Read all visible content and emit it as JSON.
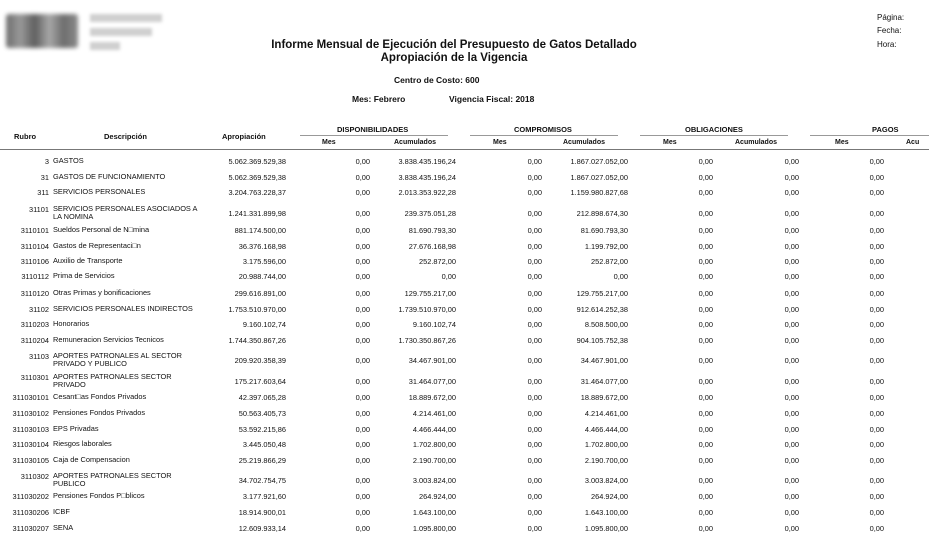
{
  "header": {
    "title": "Informe Mensual de Ejecución del Presupuesto de Gatos Detallado",
    "subtitle": "Apropiación de la Vigencia",
    "centro_costo": "Centro de Costo: 600",
    "mes": "Mes:  Febrero",
    "vigencia": "Vigencia Fiscal: 2018",
    "pagina_label": "Página:",
    "fecha_label": "Fecha:",
    "hora_label": "Hora:"
  },
  "columns": {
    "rubro": "Rubro",
    "descripcion": "Descripción",
    "apropiacion": "Apropiación",
    "disponibilidades": "DISPONIBILIDADES",
    "compromisos": "COMPROMISOS",
    "obligaciones": "OBLIGACIONES",
    "pagos": "PAGOS",
    "mes": "Mes",
    "acumulados": "Acumulados",
    "acu_partial": "Acu"
  },
  "rows": [
    {
      "rubro": "3",
      "desc": "GASTOS",
      "apro": "5.062.369.529,38",
      "dm": "0,00",
      "da": "3.838.435.196,24",
      "cm": "0,00",
      "ca": "1.867.027.052,00",
      "om": "0,00",
      "oa": "0,00",
      "pm": "0,00"
    },
    {
      "rubro": "31",
      "desc": "GASTOS DE FUNCIONAMIENTO",
      "apro": "5.062.369.529,38",
      "dm": "0,00",
      "da": "3.838.435.196,24",
      "cm": "0,00",
      "ca": "1.867.027.052,00",
      "om": "0,00",
      "oa": "0,00",
      "pm": "0,00"
    },
    {
      "rubro": "311",
      "desc": "SERVICIOS PERSONALES",
      "apro": "3.204.763.228,37",
      "dm": "0,00",
      "da": "2.013.353.922,28",
      "cm": "0,00",
      "ca": "1.159.980.827,68",
      "om": "0,00",
      "oa": "0,00",
      "pm": "0,00"
    },
    {
      "rubro": "31101",
      "desc": "SERVICIOS PERSONALES ASOCIADOS A LA NOMINA",
      "apro": "1.241.331.899,98",
      "dm": "0,00",
      "da": "239.375.051,28",
      "cm": "0,00",
      "ca": "212.898.674,30",
      "om": "0,00",
      "oa": "0,00",
      "pm": "0,00"
    },
    {
      "rubro": "3110101",
      "desc": "Sueldos Personal de N□mina",
      "apro": "881.174.500,00",
      "dm": "0,00",
      "da": "81.690.793,30",
      "cm": "0,00",
      "ca": "81.690.793,30",
      "om": "0,00",
      "oa": "0,00",
      "pm": "0,00"
    },
    {
      "rubro": "3110104",
      "desc": "Gastos de Representaci□n",
      "apro": "36.376.168,98",
      "dm": "0,00",
      "da": "27.676.168,98",
      "cm": "0,00",
      "ca": "1.199.792,00",
      "om": "0,00",
      "oa": "0,00",
      "pm": "0,00"
    },
    {
      "rubro": "3110106",
      "desc": "Auxilio de Transporte",
      "apro": "3.175.596,00",
      "dm": "0,00",
      "da": "252.872,00",
      "cm": "0,00",
      "ca": "252.872,00",
      "om": "0,00",
      "oa": "0,00",
      "pm": "0,00"
    },
    {
      "rubro": "3110112",
      "desc": "Prima de Servicios",
      "apro": "20.988.744,00",
      "dm": "0,00",
      "da": "0,00",
      "cm": "0,00",
      "ca": "0,00",
      "om": "0,00",
      "oa": "0,00",
      "pm": "0,00"
    },
    {
      "rubro": "3110120",
      "desc": "Otras Primas y bonificaciones",
      "apro": "299.616.891,00",
      "dm": "0,00",
      "da": "129.755.217,00",
      "cm": "0,00",
      "ca": "129.755.217,00",
      "om": "0,00",
      "oa": "0,00",
      "pm": "0,00"
    },
    {
      "rubro": "31102",
      "desc": "SERVICIOS PERSONALES INDIRECTOS",
      "apro": "1.753.510.970,00",
      "dm": "0,00",
      "da": "1.739.510.970,00",
      "cm": "0,00",
      "ca": "912.614.252,38",
      "om": "0,00",
      "oa": "0,00",
      "pm": "0,00"
    },
    {
      "rubro": "3110203",
      "desc": "Honorarios",
      "apro": "9.160.102,74",
      "dm": "0,00",
      "da": "9.160.102,74",
      "cm": "0,00",
      "ca": "8.508.500,00",
      "om": "0,00",
      "oa": "0,00",
      "pm": "0,00"
    },
    {
      "rubro": "3110204",
      "desc": "Remuneracion Servicios Tecnicos",
      "apro": "1.744.350.867,26",
      "dm": "0,00",
      "da": "1.730.350.867,26",
      "cm": "0,00",
      "ca": "904.105.752,38",
      "om": "0,00",
      "oa": "0,00",
      "pm": "0,00"
    },
    {
      "rubro": "31103",
      "desc": "APORTES PATRONALES AL SECTOR PRIVADO Y PUBLICO",
      "apro": "209.920.358,39",
      "dm": "0,00",
      "da": "34.467.901,00",
      "cm": "0,00",
      "ca": "34.467.901,00",
      "om": "0,00",
      "oa": "0,00",
      "pm": "0,00"
    },
    {
      "rubro": "3110301",
      "desc": "APORTES PATRONALES SECTOR PRIVADO",
      "apro": "175.217.603,64",
      "dm": "0,00",
      "da": "31.464.077,00",
      "cm": "0,00",
      "ca": "31.464.077,00",
      "om": "0,00",
      "oa": "0,00",
      "pm": "0,00"
    },
    {
      "rubro": "311030101",
      "desc": "Cesant□as Fondos Privados",
      "apro": "42.397.065,28",
      "dm": "0,00",
      "da": "18.889.672,00",
      "cm": "0,00",
      "ca": "18.889.672,00",
      "om": "0,00",
      "oa": "0,00",
      "pm": "0,00"
    },
    {
      "rubro": "311030102",
      "desc": "Pensiones Fondos Privados",
      "apro": "50.563.405,73",
      "dm": "0,00",
      "da": "4.214.461,00",
      "cm": "0,00",
      "ca": "4.214.461,00",
      "om": "0,00",
      "oa": "0,00",
      "pm": "0,00"
    },
    {
      "rubro": "311030103",
      "desc": "EPS Privadas",
      "apro": "53.592.215,86",
      "dm": "0,00",
      "da": "4.466.444,00",
      "cm": "0,00",
      "ca": "4.466.444,00",
      "om": "0,00",
      "oa": "0,00",
      "pm": "0,00"
    },
    {
      "rubro": "311030104",
      "desc": "Riesgos laborales",
      "apro": "3.445.050,48",
      "dm": "0,00",
      "da": "1.702.800,00",
      "cm": "0,00",
      "ca": "1.702.800,00",
      "om": "0,00",
      "oa": "0,00",
      "pm": "0,00"
    },
    {
      "rubro": "311030105",
      "desc": "Caja de Compensacion",
      "apro": "25.219.866,29",
      "dm": "0,00",
      "da": "2.190.700,00",
      "cm": "0,00",
      "ca": "2.190.700,00",
      "om": "0,00",
      "oa": "0,00",
      "pm": "0,00"
    },
    {
      "rubro": "3110302",
      "desc": "APORTES PATRONALES SECTOR PUBLICO",
      "apro": "34.702.754,75",
      "dm": "0,00",
      "da": "3.003.824,00",
      "cm": "0,00",
      "ca": "3.003.824,00",
      "om": "0,00",
      "oa": "0,00",
      "pm": "0,00"
    },
    {
      "rubro": "311030202",
      "desc": "Pensiones Fondos P□blicos",
      "apro": "3.177.921,60",
      "dm": "0,00",
      "da": "264.924,00",
      "cm": "0,00",
      "ca": "264.924,00",
      "om": "0,00",
      "oa": "0,00",
      "pm": "0,00"
    },
    {
      "rubro": "311030206",
      "desc": "ICBF",
      "apro": "18.914.900,01",
      "dm": "0,00",
      "da": "1.643.100,00",
      "cm": "0,00",
      "ca": "1.643.100,00",
      "om": "0,00",
      "oa": "0,00",
      "pm": "0,00"
    },
    {
      "rubro": "311030207",
      "desc": "SENA",
      "apro": "12.609.933,14",
      "dm": "0,00",
      "da": "1.095.800,00",
      "cm": "0,00",
      "ca": "1.095.800,00",
      "om": "0,00",
      "oa": "0,00",
      "pm": "0,00"
    }
  ]
}
